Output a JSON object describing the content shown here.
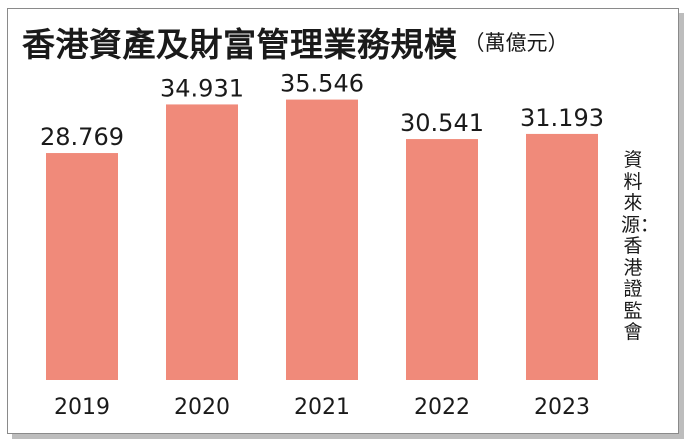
{
  "title": "香港資產及財富管理業務規模",
  "unit": "（萬億元）",
  "source": "資料來源：香港證監會",
  "colors": {
    "bar": "#f08a7a",
    "text": "#1a1a1a"
  },
  "chart_data": {
    "type": "bar",
    "title": "香港資產及財富管理業務規模",
    "categories": [
      "2019",
      "2020",
      "2021",
      "2022",
      "2023"
    ],
    "values": [
      28.769,
      34.931,
      35.546,
      30.541,
      31.193
    ],
    "value_labels": [
      "28.769",
      "34.931",
      "35.546",
      "30.541",
      "31.193"
    ],
    "xlabel": "",
    "ylabel": "",
    "ylim": [
      0,
      36
    ],
    "grid": false,
    "legend": "none"
  }
}
